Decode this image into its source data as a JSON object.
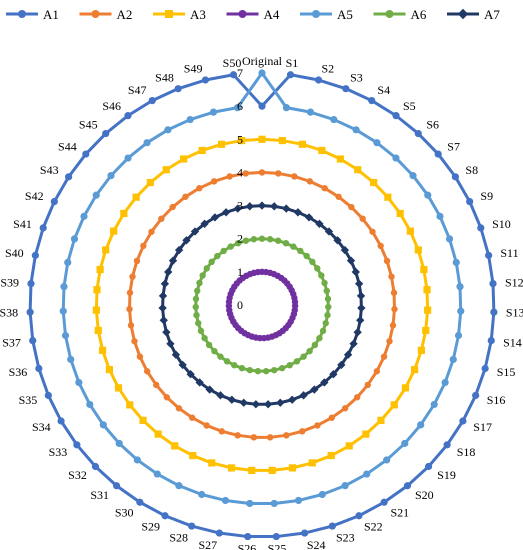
{
  "chart_data": {
    "type": "radar",
    "categories": [
      "Original",
      "S1",
      "S2",
      "S3",
      "S4",
      "S5",
      "S6",
      "S7",
      "S8",
      "S9",
      "S10",
      "S11",
      "S12",
      "S13",
      "S14",
      "S15",
      "S16",
      "S17",
      "S18",
      "S19",
      "S20",
      "S21",
      "S22",
      "S23",
      "S24",
      "S25",
      "S26",
      "S27",
      "S28",
      "S29",
      "S30",
      "S31",
      "S32",
      "S33",
      "S34",
      "S35",
      "S36",
      "S37",
      "S38",
      "S39",
      "S40",
      "S41",
      "S42",
      "S43",
      "S44",
      "S45",
      "S46",
      "S47",
      "S48",
      "S49",
      "S50"
    ],
    "radial_ticks": [
      "0",
      "1",
      "2",
      "3",
      "4",
      "5",
      "6",
      "7"
    ],
    "rlim": [
      0,
      7
    ],
    "legend_position": "top",
    "series": [
      {
        "name": "A1",
        "color": "#4472C4",
        "marker": "circle",
        "constant": 7,
        "original_value": 6
      },
      {
        "name": "A2",
        "color": "#ED7D31",
        "marker": "circle",
        "constant": 4,
        "original_value": 4
      },
      {
        "name": "A3",
        "color": "#FFC000",
        "marker": "square",
        "constant": 5,
        "original_value": 5
      },
      {
        "name": "A4",
        "color": "#7030A0",
        "marker": "circle",
        "constant": 1,
        "original_value": 1
      },
      {
        "name": "A5",
        "color": "#5B9BD5",
        "marker": "circle",
        "constant": 6,
        "original_value": 7
      },
      {
        "name": "A6",
        "color": "#70AD47",
        "marker": "circle",
        "constant": 2,
        "original_value": 2
      },
      {
        "name": "A7",
        "color": "#203864",
        "marker": "diamond",
        "constant": 3,
        "original_value": 3
      }
    ]
  }
}
